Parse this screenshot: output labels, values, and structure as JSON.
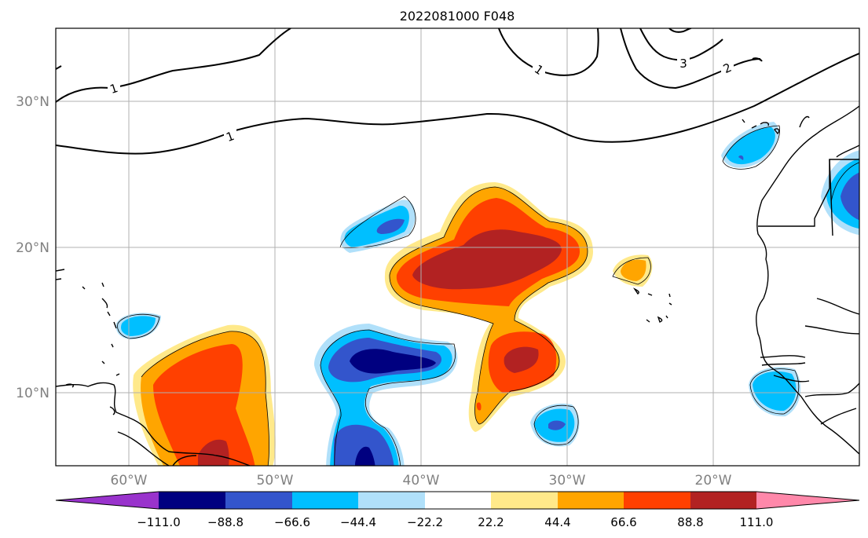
{
  "title": "2022081000 F048",
  "map": {
    "lon_range": [
      -65,
      -10
    ],
    "lat_range": [
      5,
      35
    ],
    "x_ticks": [
      "60°W",
      "50°W",
      "40°W",
      "30°W",
      "20°W"
    ],
    "y_ticks": [
      "30°N",
      "20°N",
      "10°N"
    ],
    "grid": true
  },
  "contour_labels": [
    "1",
    "1",
    "1",
    "3",
    "2"
  ],
  "colorbar": {
    "extend": "both",
    "tick_labels": [
      "−111.0",
      "−88.8",
      "−66.6",
      "−44.4",
      "−22.2",
      "22.2",
      "44.4",
      "66.6",
      "88.8",
      "111.0"
    ],
    "colors": [
      "#9933cc",
      "#000080",
      "#3355cc",
      "#00bfff",
      "#b0e0fa",
      "#ffffff",
      "#ffe98a",
      "#ffa500",
      "#ff4000",
      "#b22222",
      "#ff88aa"
    ]
  }
}
